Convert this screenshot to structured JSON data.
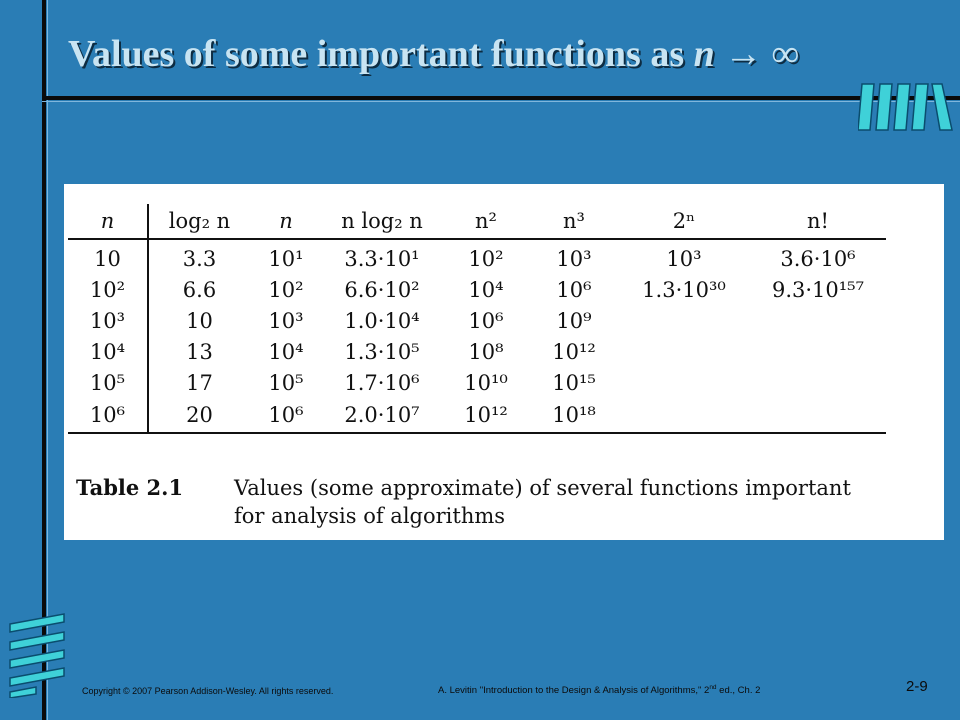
{
  "slide": {
    "title_text": "Values of some important functions as ",
    "title_var": "n",
    "title_arrow": "→",
    "title_inf": "∞",
    "page_number": "2-9",
    "accent_color": "#2a7db5"
  },
  "table": {
    "caption_label": "Table 2.1",
    "caption_line1": "Values (some approximate) of several functions important",
    "caption_line2": "for analysis of algorithms",
    "columns": [
      "n",
      "log₂ n",
      "n",
      "n log₂ n",
      "n²",
      "n³",
      "2ⁿ",
      "n!"
    ],
    "rows": [
      [
        "10",
        "3.3",
        "10¹",
        "3.3·10¹",
        "10²",
        "10³",
        "10³",
        "3.6·10⁶"
      ],
      [
        "10²",
        "6.6",
        "10²",
        "6.6·10²",
        "10⁴",
        "10⁶",
        "1.3·10³⁰",
        "9.3·10¹⁵⁷"
      ],
      [
        "10³",
        "10",
        "10³",
        "1.0·10⁴",
        "10⁶",
        "10⁹",
        "",
        ""
      ],
      [
        "10⁴",
        "13",
        "10⁴",
        "1.3·10⁵",
        "10⁸",
        "10¹²",
        "",
        ""
      ],
      [
        "10⁵",
        "17",
        "10⁵",
        "1.7·10⁶",
        "10¹⁰",
        "10¹⁵",
        "",
        ""
      ],
      [
        "10⁶",
        "20",
        "10⁶",
        "2.0·10⁷",
        "10¹²",
        "10¹⁸",
        "",
        ""
      ]
    ]
  },
  "footer": {
    "copyright": "Copyright © 2007 Pearson Addison-Wesley. All rights reserved.",
    "cite_before": "A. Levitin \"Introduction to the Design & Analysis of Algorithms,\" 2",
    "cite_sup": "nd",
    "cite_after": " ed., Ch. 2"
  }
}
